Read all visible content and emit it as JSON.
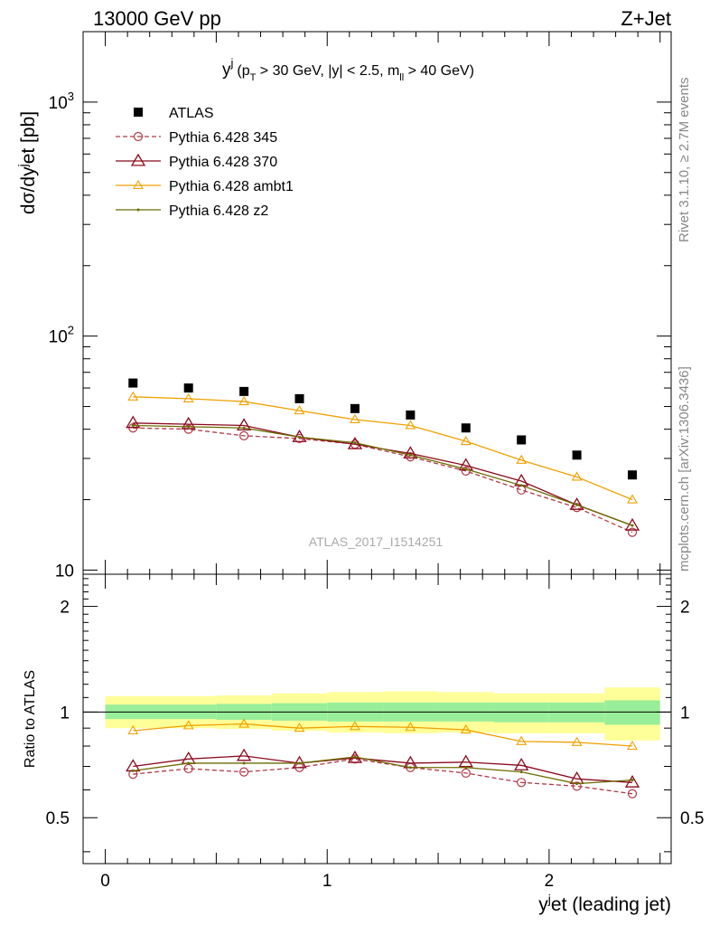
{
  "header": {
    "left": "13000 GeV pp",
    "right": "Z+Jet"
  },
  "side_labels": {
    "rivet": "Rivet 3.1.10, ≥ 2.7M events",
    "mcplots": "mcplots.cern.ch [arXiv:1306.3436]"
  },
  "watermark": "ATLAS_2017_I1514251",
  "colors": {
    "atlas": "#000000",
    "p345": "#b03a48",
    "p370": "#8b0a1e",
    "ambt1": "#f0a000",
    "z2": "#6b6b00",
    "band_inner": "#99ee99",
    "band_outer": "#ffff99"
  },
  "chart_data": [
    {
      "type": "scatter",
      "title": "y^j (p_T > 30 GeV, |y| < 2.5, m_ll > 40 GeV)",
      "title_parts": {
        "main": "y",
        "sup": "j",
        "part1": "(p",
        "sub_T": "T",
        "part2": " > 30 GeV, |y| < 2.5, m",
        "sub_ll": "ll",
        "part3": " > 40 GeV)"
      },
      "ylabel": "dσ/dy^jet [pb]",
      "ylabel_parts": {
        "a": "dσ/dy",
        "sup": "j",
        "b": "et [pb]"
      },
      "yscale": "log",
      "ylim": [
        9.6,
        2000
      ],
      "xlim": [
        -0.1,
        2.55
      ],
      "yticks": [
        {
          "v": 10,
          "base": "10",
          "exp": ""
        },
        {
          "v": 100,
          "base": "10",
          "exp": "2"
        },
        {
          "v": 1000,
          "base": "10",
          "exp": "3"
        }
      ],
      "legend_position": "top-left",
      "x": [
        0.125,
        0.375,
        0.625,
        0.875,
        1.125,
        1.375,
        1.625,
        1.875,
        2.125,
        2.375
      ],
      "series": [
        {
          "name": "ATLAS",
          "key": "atlas",
          "marker": "square",
          "line": "none",
          "values": [
            63,
            60,
            58,
            54,
            49,
            46,
            40.5,
            36,
            31,
            25.5
          ]
        },
        {
          "name": "Pythia 6.428 345",
          "key": "p345",
          "marker": "circle",
          "line": "dashed",
          "values": [
            40.5,
            40,
            37.5,
            36.5,
            34.5,
            30.5,
            26.5,
            22,
            18.5,
            14.5
          ]
        },
        {
          "name": "Pythia 6.428 370",
          "key": "p370",
          "marker": "triangle-big",
          "line": "solid",
          "values": [
            42.5,
            42,
            41.5,
            37,
            34.5,
            31.5,
            28,
            24,
            19,
            15.5
          ]
        },
        {
          "name": "Pythia 6.428 ambt1",
          "key": "ambt1",
          "marker": "triangle",
          "line": "solid",
          "values": [
            55,
            54,
            52.5,
            48,
            44,
            41.5,
            35.5,
            29.5,
            25,
            20
          ]
        },
        {
          "name": "Pythia 6.428 z2",
          "key": "z2",
          "marker": "dot",
          "line": "solid",
          "values": [
            41.5,
            41,
            40.5,
            37,
            35,
            31,
            27,
            23,
            19,
            15.5
          ]
        }
      ]
    },
    {
      "type": "line",
      "ylabel": "Ratio to ATLAS",
      "xlabel": "y^jet (leading jet)",
      "xlabel_parts": {
        "a": "y",
        "sup": "j",
        "b": "et (leading jet)"
      },
      "ylim": [
        0.37,
        2.47
      ],
      "xlim": [
        -0.1,
        2.55
      ],
      "yticks": [
        0.5,
        1,
        2
      ],
      "ytick_labels": [
        "0.5",
        "1",
        "2"
      ],
      "xticks": [
        0,
        1,
        2
      ],
      "xtick_labels": [
        "0",
        "1",
        "2"
      ],
      "bins": [
        [
          0,
          0.25
        ],
        [
          0.25,
          0.5
        ],
        [
          0.5,
          0.75
        ],
        [
          0.75,
          1.0
        ],
        [
          1.0,
          1.25
        ],
        [
          1.25,
          1.5
        ],
        [
          1.5,
          1.75
        ],
        [
          1.75,
          2.0
        ],
        [
          2.0,
          2.25
        ],
        [
          2.25,
          2.5
        ]
      ],
      "band_inner": [
        [
          0.955,
          1.05
        ],
        [
          0.955,
          1.05
        ],
        [
          0.95,
          1.055
        ],
        [
          0.945,
          1.06
        ],
        [
          0.94,
          1.065
        ],
        [
          0.94,
          1.065
        ],
        [
          0.94,
          1.065
        ],
        [
          0.935,
          1.065
        ],
        [
          0.935,
          1.065
        ],
        [
          0.92,
          1.08
        ]
      ],
      "band_outer": [
        [
          0.9,
          1.11
        ],
        [
          0.9,
          1.11
        ],
        [
          0.895,
          1.115
        ],
        [
          0.885,
          1.13
        ],
        [
          0.875,
          1.14
        ],
        [
          0.87,
          1.145
        ],
        [
          0.875,
          1.14
        ],
        [
          0.87,
          1.13
        ],
        [
          0.87,
          1.13
        ],
        [
          0.83,
          1.175
        ]
      ],
      "x": [
        0.125,
        0.375,
        0.625,
        0.875,
        1.125,
        1.375,
        1.625,
        1.875,
        2.125,
        2.375
      ],
      "series": [
        {
          "key": "p345",
          "marker": "circle",
          "line": "dashed",
          "values": [
            0.665,
            0.69,
            0.675,
            0.695,
            0.735,
            0.695,
            0.67,
            0.63,
            0.615,
            0.585
          ]
        },
        {
          "key": "p370",
          "marker": "triangle-big",
          "line": "solid",
          "values": [
            0.7,
            0.735,
            0.75,
            0.715,
            0.74,
            0.715,
            0.72,
            0.705,
            0.645,
            0.63
          ]
        },
        {
          "key": "ambt1",
          "marker": "triangle",
          "line": "solid",
          "values": [
            0.885,
            0.915,
            0.925,
            0.9,
            0.91,
            0.905,
            0.89,
            0.825,
            0.82,
            0.8
          ]
        },
        {
          "key": "z2",
          "marker": "dot",
          "line": "solid",
          "values": [
            0.68,
            0.715,
            0.715,
            0.715,
            0.745,
            0.695,
            0.695,
            0.675,
            0.625,
            0.64
          ]
        }
      ]
    }
  ]
}
